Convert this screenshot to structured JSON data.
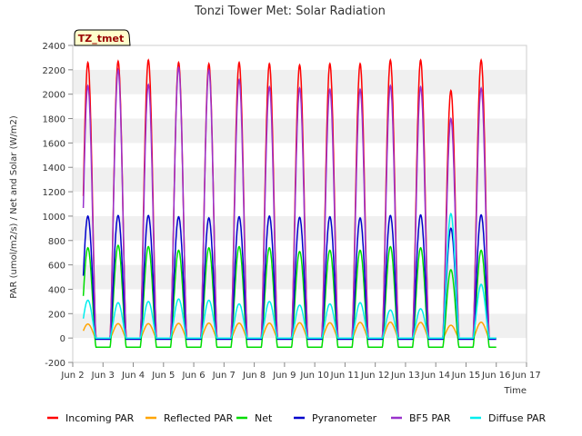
{
  "chart_data": {
    "type": "line",
    "title": "Tonzi Tower Met: Solar Radiation",
    "xlabel": "Time",
    "ylabel": "PAR (umol/m2/s) / Net and Solar (W/m2)",
    "badge": "TZ_tmet",
    "xlim": [
      2,
      17
    ],
    "ylim": [
      -200,
      2400
    ],
    "x_ticks": [
      {
        "v": 2,
        "label": "Jun 2"
      },
      {
        "v": 3,
        "label": "Jun 3"
      },
      {
        "v": 4,
        "label": "Jun 4"
      },
      {
        "v": 5,
        "label": "Jun 5"
      },
      {
        "v": 6,
        "label": "Jun 6"
      },
      {
        "v": 7,
        "label": "Jun 7"
      },
      {
        "v": 8,
        "label": "Jun 8"
      },
      {
        "v": 9,
        "label": "Jun 9"
      },
      {
        "v": 10,
        "label": "Jun 10"
      },
      {
        "v": 11,
        "label": "Jun 11"
      },
      {
        "v": 12,
        "label": "Jun 12"
      },
      {
        "v": 13,
        "label": "Jun 13"
      },
      {
        "v": 14,
        "label": "Jun 14"
      },
      {
        "v": 15,
        "label": "Jun 15"
      },
      {
        "v": 16,
        "label": "Jun 16"
      },
      {
        "v": 17,
        "label": "Jun 17"
      }
    ],
    "y_ticks": [
      -200,
      0,
      200,
      400,
      600,
      800,
      1000,
      1200,
      1400,
      1600,
      1800,
      2000,
      2200,
      2400
    ],
    "grid": "horizontal bands",
    "legend_position": "bottom",
    "days": [
      2.5,
      3.5,
      4.5,
      5.5,
      6.5,
      7.5,
      8.5,
      9.5,
      10.5,
      11.5,
      12.5,
      13.5,
      14.5,
      15.5
    ],
    "series": [
      {
        "name": "Incoming PAR",
        "color": "#ff0000",
        "night": 0,
        "peaks": [
          2260,
          2270,
          2280,
          2260,
          2250,
          2260,
          2250,
          2240,
          2250,
          2250,
          2280,
          2280,
          2030,
          2280
        ]
      },
      {
        "name": "Reflected PAR",
        "color": "#ffa500",
        "night": 0,
        "peaks": [
          115,
          118,
          118,
          120,
          122,
          122,
          122,
          125,
          125,
          128,
          130,
          128,
          105,
          130
        ]
      },
      {
        "name": "Net",
        "color": "#00dd00",
        "night": -75,
        "peaks": [
          740,
          760,
          750,
          720,
          740,
          750,
          740,
          710,
          720,
          720,
          750,
          740,
          560,
          720
        ]
      },
      {
        "name": "Pyranometer",
        "color": "#0000cc",
        "night": -10,
        "peaks": [
          1000,
          1005,
          1005,
          995,
          985,
          995,
          1000,
          990,
          995,
          985,
          1005,
          1010,
          900,
          1010
        ]
      },
      {
        "name": "BF5 PAR",
        "color": "#9932cc",
        "night": 0,
        "peaks": [
          2070,
          2200,
          2080,
          2220,
          2200,
          2120,
          2060,
          2050,
          2040,
          2040,
          2070,
          2060,
          1800,
          2050
        ]
      },
      {
        "name": "Diffuse PAR",
        "color": "#00eeee",
        "night": 0,
        "peaks": [
          310,
          290,
          300,
          320,
          310,
          280,
          300,
          270,
          280,
          290,
          230,
          240,
          1020,
          440
        ]
      }
    ]
  }
}
